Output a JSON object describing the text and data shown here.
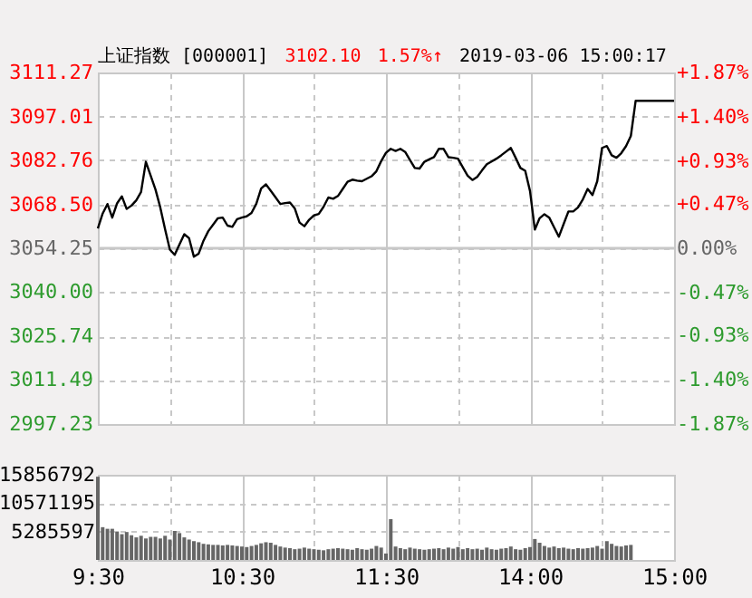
{
  "chart_data": [
    {
      "type": "line",
      "title": "上证指数 [000001]",
      "annotations": [
        "3102.10",
        "1.57%↑",
        "2019-03-06 15:00:17"
      ],
      "categories": [
        null,
        null,
        null,
        null,
        null,
        null,
        null,
        null,
        null,
        null,
        null,
        null,
        null,
        null,
        null,
        null,
        null,
        null,
        null,
        null,
        null,
        null,
        null,
        null,
        null,
        null,
        null,
        null,
        null,
        null,
        null,
        null,
        null,
        null,
        null,
        null,
        null,
        null,
        null,
        null,
        null,
        null,
        null,
        null,
        null,
        null,
        null,
        null,
        null,
        null,
        null,
        null,
        null,
        null,
        null,
        null,
        null,
        null,
        null,
        null,
        null,
        null,
        null,
        null,
        null,
        null,
        null,
        null,
        null,
        null,
        null,
        null,
        null,
        null,
        null,
        null,
        null,
        null,
        null,
        null,
        null,
        null,
        null,
        null,
        null,
        null,
        null,
        null,
        null,
        null,
        null,
        null,
        null,
        null,
        null,
        null,
        null,
        null,
        null,
        null,
        null,
        null,
        null,
        null,
        null,
        null,
        null,
        null,
        null,
        null,
        null,
        null,
        null,
        null,
        null,
        null,
        null,
        null,
        null,
        null,
        null
      ],
      "series": [
        {
          "color": "#000000",
          "values": [
            3060.7,
            3065.5,
            3068.6,
            3064.2,
            3068.8,
            3071.1,
            3067.0,
            3068.1,
            3069.8,
            3072.5,
            3082.3,
            3077.8,
            3073.3,
            3067.5,
            3060.4,
            3053.8,
            3052.1,
            3055.5,
            3058.8,
            3057.5,
            3051.5,
            3052.5,
            3056.7,
            3059.8,
            3061.9,
            3064.0,
            3064.2,
            3061.6,
            3061.2,
            3063.7,
            3064.2,
            3064.6,
            3065.7,
            3068.7,
            3073.6,
            3075.0,
            3072.9,
            3070.8,
            3068.6,
            3068.9,
            3069.1,
            3067.2,
            3062.6,
            3061.4,
            3063.5,
            3064.9,
            3065.4,
            3067.7,
            3070.7,
            3070.3,
            3071.2,
            3073.5,
            3075.8,
            3076.5,
            3076.2,
            3076.0,
            3076.8,
            3077.6,
            3079.2,
            3082.5,
            3085.2,
            3086.5,
            3085.8,
            3086.5,
            3085.5,
            3082.9,
            3080.3,
            3080.1,
            3082.3,
            3083.1,
            3083.8,
            3086.5,
            3086.5,
            3083.8,
            3083.6,
            3083.3,
            3080.5,
            3077.8,
            3076.4,
            3077.4,
            3079.5,
            3081.5,
            3082.4,
            3083.3,
            3084.4,
            3085.6,
            3086.8,
            3083.6,
            3080.3,
            3079.4,
            3072.8,
            3060.3,
            3064.0,
            3065.3,
            3064.2,
            3061.1,
            3058.0,
            3062.1,
            3066.2,
            3066.2,
            3067.5,
            3070.1,
            3073.5,
            3071.5,
            3076.0,
            3086.8,
            3087.4,
            3084.4,
            3083.6,
            3085.1,
            3087.4,
            3090.7,
            3102.1,
            3102.1,
            3102.1,
            3102.1,
            3102.1,
            3102.1,
            3102.1,
            3102.1,
            3102.1
          ]
        }
      ],
      "ylim": [
        2997.23,
        3111.27
      ],
      "yticks": [
        2997.23,
        3011.49,
        3025.74,
        {
          "value": 3040,
          "label": "3040.00"
        },
        3054.25,
        {
          "value": 3068.5,
          "label": "3068.50"
        },
        3082.76,
        3097.01,
        3111.27
      ],
      "y2lim": [
        -1.87,
        1.87
      ],
      "y2ticks": [
        {
          "value": -1.87,
          "label": "-1.87%"
        },
        {
          "value": -1.4,
          "label": "-1.40%"
        },
        {
          "value": -0.93,
          "label": "-0.93%"
        },
        {
          "value": -0.47,
          "label": "-0.47%"
        },
        {
          "value": 0,
          "label": "0.00%"
        },
        {
          "value": 0.47,
          "label": "+0.47%"
        },
        {
          "value": 0.93,
          "label": "+0.93%"
        },
        {
          "value": 1.4,
          "label": "+1.40%"
        },
        {
          "value": 1.87,
          "label": "+1.87%"
        }
      ],
      "ref_lines": [
        {
          "axis": "y",
          "value": 3054.25,
          "color": "#c8c8c8"
        }
      ],
      "grid": true,
      "tick_labels": "y"
    },
    {
      "type": "bar",
      "color": "#666666",
      "categories": [
        "9:30",
        null,
        null,
        null,
        null,
        null,
        null,
        null,
        null,
        null,
        null,
        null,
        null,
        null,
        null,
        null,
        null,
        null,
        null,
        null,
        null,
        null,
        null,
        null,
        null,
        null,
        null,
        null,
        null,
        null,
        "10:30",
        null,
        null,
        null,
        null,
        null,
        null,
        null,
        null,
        null,
        null,
        null,
        null,
        null,
        null,
        null,
        null,
        null,
        null,
        null,
        null,
        null,
        null,
        null,
        null,
        null,
        null,
        null,
        null,
        null,
        "11:30",
        null,
        null,
        null,
        null,
        null,
        null,
        null,
        null,
        null,
        null,
        null,
        null,
        null,
        null,
        null,
        null,
        null,
        null,
        null,
        null,
        null,
        null,
        null,
        null,
        null,
        null,
        null,
        null,
        null,
        "14:00",
        null,
        null,
        null,
        null,
        null,
        null,
        null,
        null,
        null,
        null,
        null,
        null,
        null,
        null,
        null,
        null,
        null,
        null,
        null,
        null,
        null,
        null,
        null,
        null,
        null,
        null,
        null,
        null,
        null,
        "15:00"
      ],
      "values": [
        15500000,
        6100000,
        5800000,
        5800000,
        5300000,
        4800000,
        5200000,
        4600000,
        4200000,
        4500000,
        4000000,
        4300000,
        4300000,
        4000000,
        4500000,
        3800000,
        5400000,
        5000000,
        4200000,
        3800000,
        3500000,
        3300000,
        3000000,
        2900000,
        2800000,
        2800000,
        2700000,
        2800000,
        2700000,
        2600000,
        2500000,
        2400000,
        2600000,
        2800000,
        3100000,
        3300000,
        3200000,
        2800000,
        2500000,
        2300000,
        2200000,
        2000000,
        2100000,
        2300000,
        2100000,
        2000000,
        1900000,
        1800000,
        2000000,
        2100000,
        2200000,
        2100000,
        2000000,
        1900000,
        2200000,
        2000000,
        1900000,
        2100000,
        2600000,
        2300000,
        1200000,
        7600000,
        2500000,
        2200000,
        2000000,
        2300000,
        2100000,
        2000000,
        1900000,
        2000000,
        2100000,
        2200000,
        2000000,
        2300000,
        2100000,
        2400000,
        2000000,
        2200000,
        2000000,
        2100000,
        1900000,
        2300000,
        2000000,
        1900000,
        2100000,
        2200000,
        2500000,
        2000000,
        1900000,
        2200000,
        2400000,
        3900000,
        3200000,
        2600000,
        2300000,
        2500000,
        2200000,
        2300000,
        2100000,
        2000000,
        2200000,
        2100000,
        2200000,
        2300000,
        2600000,
        2100000,
        3500000,
        3000000,
        2600000,
        2500000,
        2700000,
        2800000,
        null,
        null,
        null,
        null,
        null,
        null,
        null,
        null,
        null
      ],
      "ylim": [
        0,
        15856792
      ],
      "yticks": [
        {
          "value": 0,
          "label": null
        },
        5285597,
        10571195,
        15856792
      ],
      "grid": true
    }
  ]
}
